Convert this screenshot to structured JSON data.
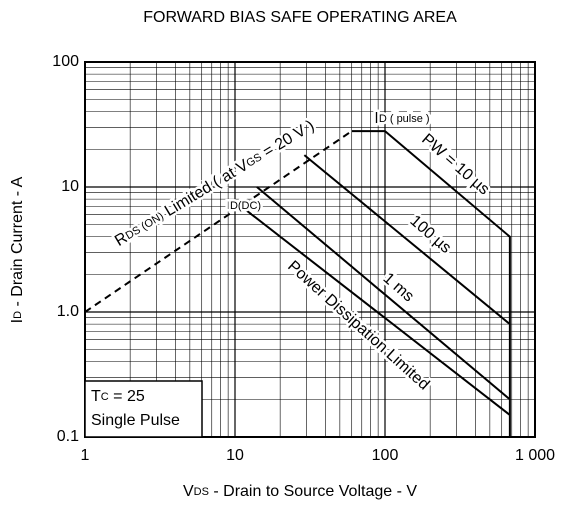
{
  "chart_data": {
    "type": "line",
    "title": "FORWARD BIAS SAFE OPERATING AREA",
    "x_label": [
      "V",
      "DS",
      " - Drain to Source Voltage - V"
    ],
    "y_label": [
      "I",
      "D",
      " - Drain Current - A"
    ],
    "log_x": true,
    "log_y": true,
    "grid": true,
    "color": "#000000",
    "xlim": [
      1,
      1000
    ],
    "ylim": [
      0.1,
      100
    ],
    "xticks": [
      1,
      10,
      100,
      {
        "value": 1000,
        "label": "1 000"
      }
    ],
    "yticks": [
      0.1,
      {
        "value": 1,
        "label": "1.0"
      },
      10,
      100
    ],
    "series": [
      {
        "name": [
          "R",
          "DS (ON)",
          " Limited ( at V",
          "GS",
          " = 20 V )"
        ],
        "dashed": true,
        "x": [
          1,
          60
        ],
        "values": [
          1,
          28
        ]
      },
      {
        "name": [
          "PW = 10 µs"
        ],
        "x": [
          60,
          100,
          680,
          680
        ],
        "values": [
          28,
          28,
          4,
          0.1
        ]
      },
      {
        "name": [
          "100 µs"
        ],
        "x": [
          29,
          680
        ],
        "values": [
          18,
          0.8
        ]
      },
      {
        "name": [
          "1 ms"
        ],
        "x": [
          14,
          680
        ],
        "values": [
          10,
          0.2
        ]
      },
      {
        "name": [
          "Power Dissipation Limited"
        ],
        "x": [
          11,
          680
        ],
        "values": [
          7,
          0.15
        ]
      }
    ],
    "annotations": [
      [
        "I",
        "D ( pulse )"
      ],
      [
        "I",
        "D(DC)"
      ]
    ],
    "note": [
      [
        "T",
        "C",
        " = 25"
      ],
      [
        "Single Pulse"
      ]
    ]
  }
}
